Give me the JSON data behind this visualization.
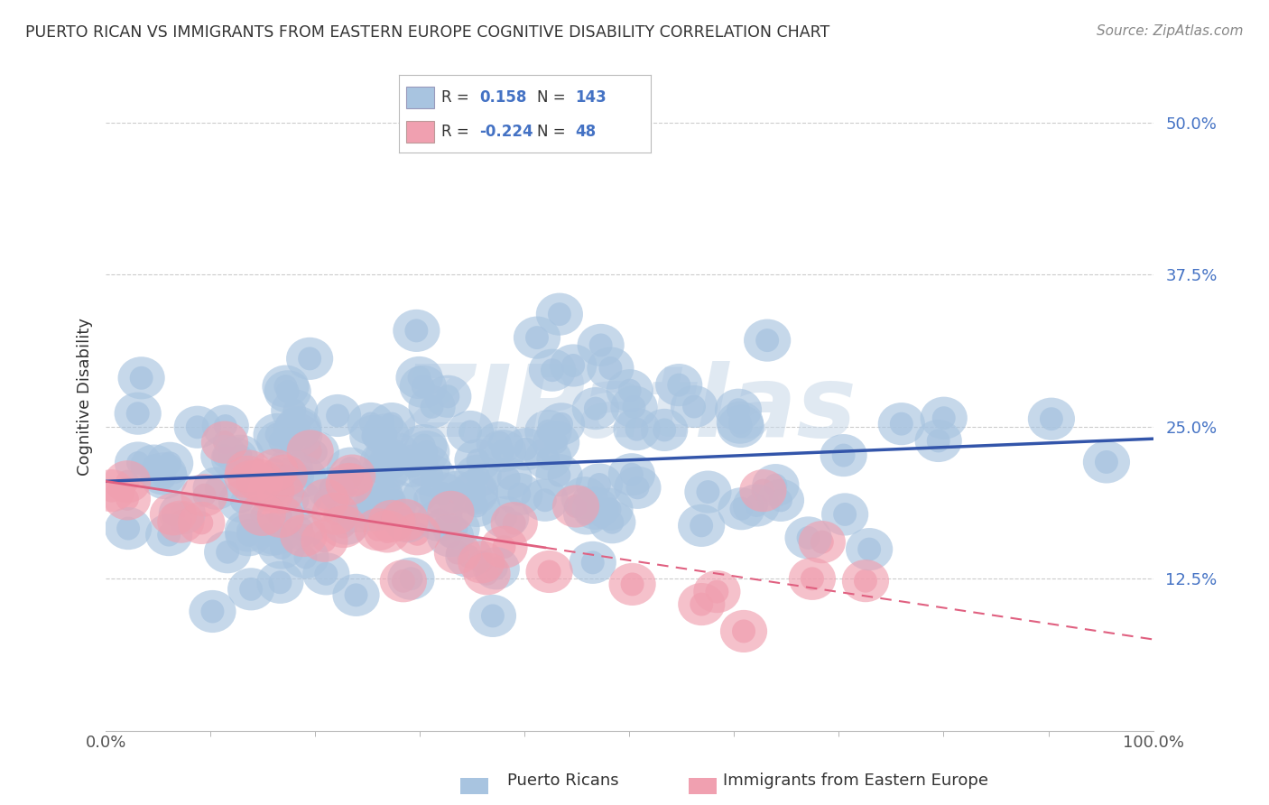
{
  "title": "PUERTO RICAN VS IMMIGRANTS FROM EASTERN EUROPE COGNITIVE DISABILITY CORRELATION CHART",
  "source": "Source: ZipAtlas.com",
  "ylabel": "Cognitive Disability",
  "xlim": [
    0,
    100
  ],
  "ylim": [
    0,
    55
  ],
  "yticks": [
    12.5,
    25.0,
    37.5,
    50.0
  ],
  "ytick_labels": [
    "12.5%",
    "25.0%",
    "37.5%",
    "50.0%"
  ],
  "xtick_labels": [
    "0.0%",
    "100.0%"
  ],
  "blue_color": "#a8c4e0",
  "pink_color": "#f0a0b0",
  "blue_line_color": "#3355aa",
  "pink_line_color": "#e06080",
  "legend_blue_R": "0.158",
  "legend_blue_N": "143",
  "legend_pink_R": "-0.224",
  "legend_pink_N": "48",
  "watermark": "ZIPatlas",
  "watermark_color": "#c8d8e8",
  "background_color": "#ffffff",
  "grid_color": "#cccccc",
  "blue_seed": 42,
  "pink_seed": 77,
  "blue_n": 143,
  "pink_n": 48,
  "blue_y_intercept": 20.5,
  "blue_slope": 0.035,
  "pink_y_intercept": 20.5,
  "pink_slope": -0.13,
  "pink_solid_end": 42
}
